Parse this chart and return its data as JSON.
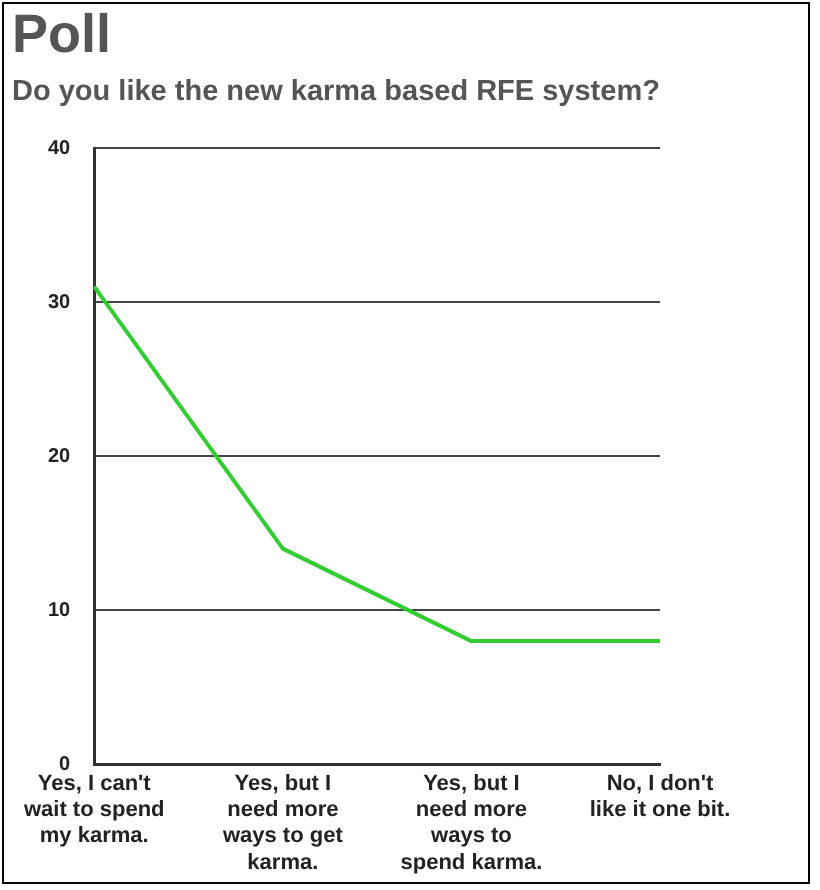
{
  "chart_data": {
    "type": "line",
    "title": "Poll",
    "subtitle": "Do you like the new karma based RFE system?",
    "categories": [
      "Yes, I can't wait to spend my karma.",
      "Yes, but I need more ways to get karma.",
      "Yes, but I need more ways to spend karma.",
      "No, I don't like it one bit."
    ],
    "series": [
      {
        "color": "#33cc33",
        "values": [
          31,
          14,
          8,
          8
        ]
      }
    ],
    "ylim": [
      0,
      40
    ],
    "yticks": [
      0,
      10,
      20,
      30,
      40
    ],
    "grid": "y",
    "legend": false,
    "marker": "none",
    "line_style": "solid"
  }
}
